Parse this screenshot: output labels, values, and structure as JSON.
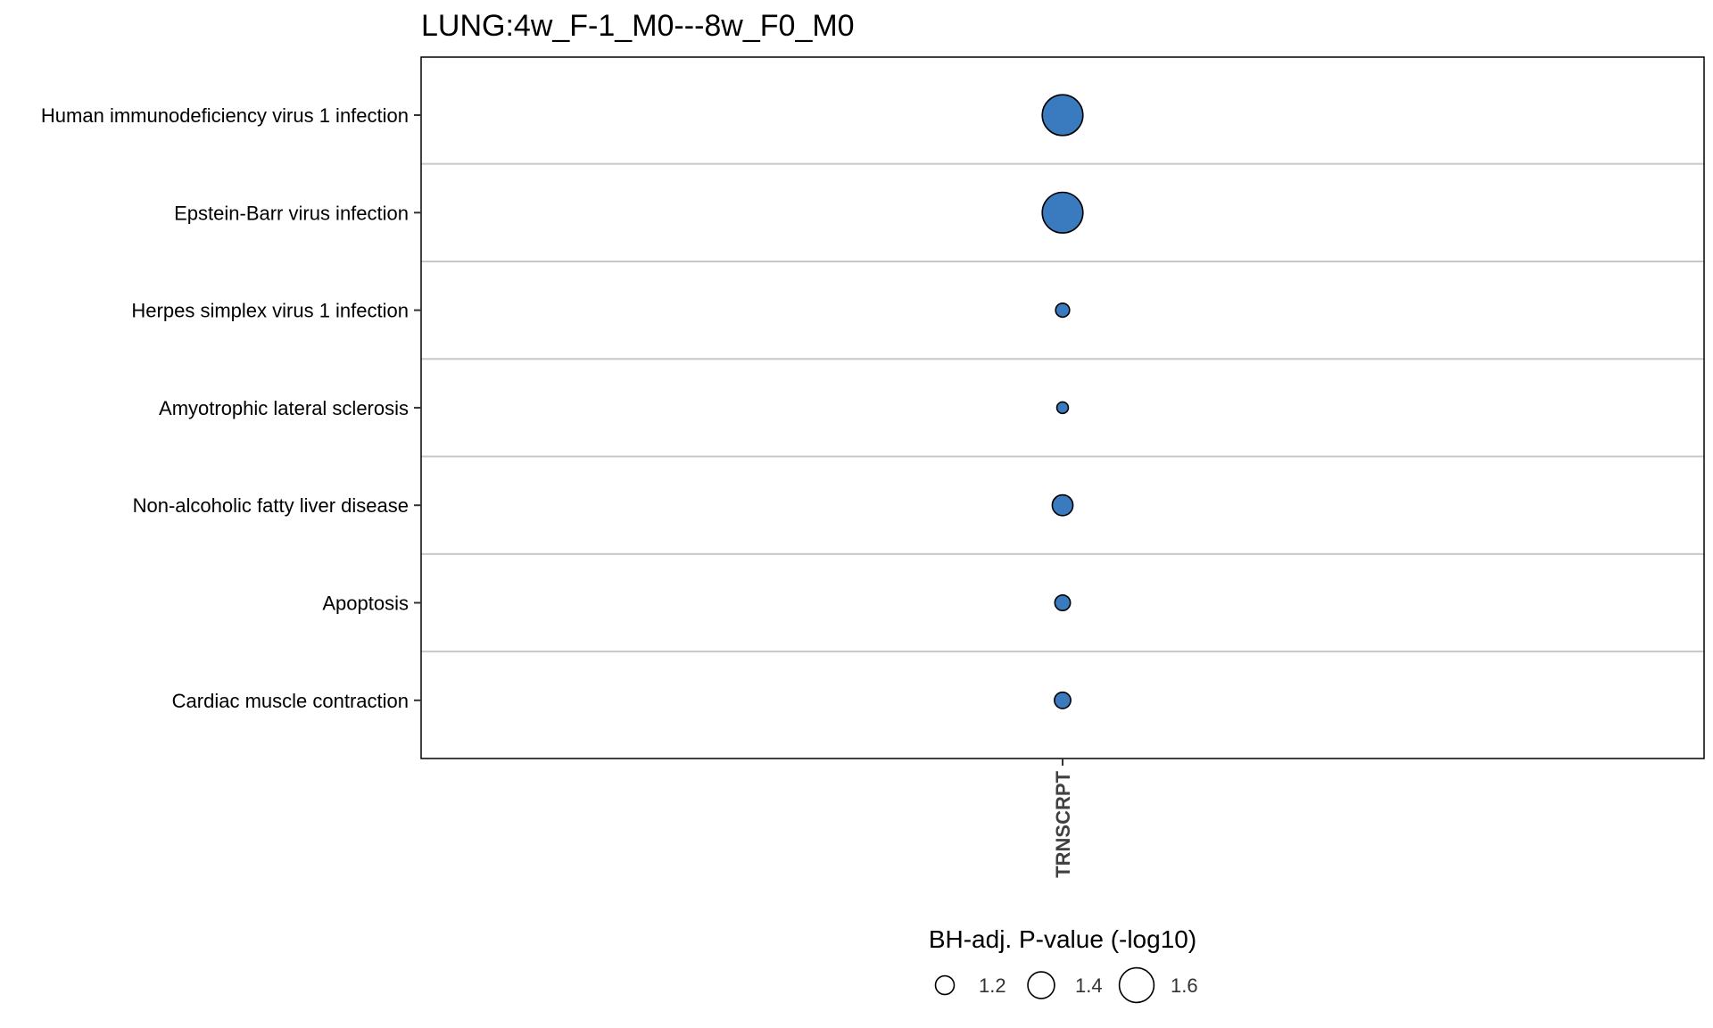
{
  "chart_data": {
    "type": "scatter",
    "title": "LUNG:4w_F-1_M0---8w_F0_M0",
    "x_categories": [
      "TRNSCRPT"
    ],
    "y_categories": [
      "Human immunodeficiency virus 1 infection",
      "Epstein-Barr virus infection",
      "Herpes simplex virus 1 infection",
      "Amyotrophic lateral sclerosis",
      "Non-alcoholic fatty liver disease",
      "Apoptosis",
      "Cardiac muscle contraction"
    ],
    "size_variable": "BH-adj. P-value (-log10)",
    "points": [
      {
        "x": "TRNSCRPT",
        "y": "Human immunodeficiency virus 1 infection",
        "size": 1.75
      },
      {
        "x": "TRNSCRPT",
        "y": "Epstein-Barr virus infection",
        "size": 1.75
      },
      {
        "x": "TRNSCRPT",
        "y": "Herpes simplex virus 1 infection",
        "size": 1.08
      },
      {
        "x": "TRNSCRPT",
        "y": "Amyotrophic lateral sclerosis",
        "size": 1.02
      },
      {
        "x": "TRNSCRPT",
        "y": "Non-alcoholic fatty liver disease",
        "size": 1.25
      },
      {
        "x": "TRNSCRPT",
        "y": "Apoptosis",
        "size": 1.12
      },
      {
        "x": "TRNSCRPT",
        "y": "Cardiac muscle contraction",
        "size": 1.14
      }
    ],
    "legend": {
      "title": "BH-adj. P-value (-log10)",
      "entries": [
        {
          "label": "1.2",
          "value": 1.2
        },
        {
          "label": "1.4",
          "value": 1.4
        },
        {
          "label": "1.6",
          "value": 1.6
        }
      ],
      "position": "bottom"
    },
    "grid": "horizontal-only",
    "colors": {
      "point_fill": "#3a7bbf",
      "point_stroke": "#000000",
      "gridline": "#c8c8c8",
      "frame": "#000000"
    }
  }
}
